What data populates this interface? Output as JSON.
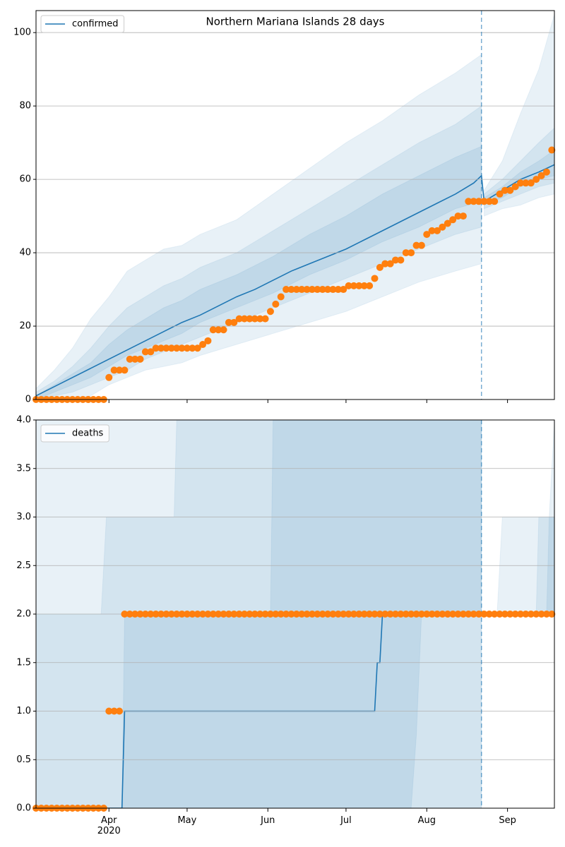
{
  "chart_data": [
    {
      "type": "line",
      "title": "Northern Mariana Islands 28 days",
      "xlim": [
        64,
        263
      ],
      "ylim": [
        0,
        106
      ],
      "yticks": [
        0,
        20,
        40,
        60,
        80,
        100
      ],
      "grid": true,
      "legend": "upper left",
      "series": [
        {
          "name": "confirmed",
          "color": "#1f77b4",
          "x": [
            64,
            71,
            78,
            85,
            92,
            99,
            106,
            113,
            120,
            127,
            134,
            141,
            148,
            155,
            162,
            169,
            176,
            183,
            190,
            197,
            204,
            211,
            218,
            225,
            232,
            235,
            236,
            243,
            250,
            257,
            263
          ],
          "values": [
            1,
            3.5,
            6,
            8.5,
            11,
            13.5,
            16,
            18.5,
            21,
            23,
            25.5,
            28,
            30,
            32.5,
            35,
            37,
            39,
            41,
            43.5,
            46,
            48.5,
            51,
            53.5,
            56,
            59,
            61,
            54,
            57,
            60,
            62,
            64
          ]
        }
      ],
      "observed": {
        "color": "#ff7f0e",
        "x": [
          64,
          66,
          68,
          70,
          72,
          74,
          76,
          78,
          80,
          82,
          84,
          86,
          88,
          90,
          92,
          94,
          96,
          98,
          100,
          102,
          104,
          106,
          108,
          110,
          112,
          114,
          116,
          118,
          120,
          122,
          124,
          126,
          128,
          130,
          132,
          134,
          136,
          138,
          140,
          142,
          144,
          146,
          148,
          150,
          152,
          154,
          156,
          158,
          160,
          162,
          164,
          166,
          168,
          170,
          172,
          174,
          176,
          178,
          180,
          182,
          184,
          186,
          188,
          190,
          192,
          194,
          196,
          198,
          200,
          202,
          204,
          206,
          208,
          210,
          212,
          214,
          216,
          218,
          220,
          222,
          224,
          226,
          228,
          230,
          232,
          234,
          236,
          238,
          240,
          242,
          244,
          246,
          248,
          250,
          252,
          254,
          256,
          258,
          260,
          262
        ],
        "values": [
          0,
          0,
          0,
          0,
          0,
          0,
          0,
          0,
          0,
          0,
          0,
          0,
          0,
          0,
          6,
          8,
          8,
          8,
          11,
          11,
          11,
          13,
          13,
          14,
          14,
          14,
          14,
          14,
          14,
          14,
          14,
          14,
          15,
          16,
          19,
          19,
          19,
          21,
          21,
          22,
          22,
          22,
          22,
          22,
          22,
          24,
          26,
          28,
          30,
          30,
          30,
          30,
          30,
          30,
          30,
          30,
          30,
          30,
          30,
          30,
          31,
          31,
          31,
          31,
          31,
          33,
          36,
          37,
          37,
          38,
          38,
          40,
          40,
          42,
          42,
          45,
          46,
          46,
          47,
          48,
          49,
          50,
          50,
          54,
          54,
          54,
          54,
          54,
          54,
          56,
          57,
          57,
          58,
          59,
          59,
          59,
          60,
          61,
          62,
          68
        ]
      },
      "band_color": "#1f77b4",
      "bands": [
        {
          "x": [
            64,
            71,
            78,
            85,
            92,
            99,
            106,
            113,
            120,
            127,
            141,
            155,
            169,
            183,
            197,
            211,
            225,
            235
          ],
          "lower": [
            0,
            0,
            0,
            1,
            4,
            6,
            8,
            9,
            10,
            12,
            15,
            18,
            21,
            24,
            28,
            32,
            35,
            37
          ],
          "upper": [
            3,
            8,
            14,
            22,
            28,
            35,
            38,
            41,
            42,
            45,
            49,
            56,
            63,
            70,
            76,
            83,
            89,
            94
          ]
        },
        {
          "x": [
            64,
            71,
            78,
            85,
            92,
            99,
            106,
            113,
            120,
            127,
            141,
            155,
            169,
            183,
            197,
            211,
            225,
            235
          ],
          "lower": [
            0,
            1,
            2,
            4,
            6,
            8,
            11,
            13,
            15,
            17,
            21,
            25,
            29,
            33,
            37,
            41,
            45,
            47
          ],
          "upper": [
            2,
            5,
            9,
            14,
            20,
            25,
            28,
            31,
            33,
            36,
            40,
            46,
            52,
            58,
            64,
            70,
            75,
            80
          ]
        },
        {
          "x": [
            64,
            71,
            78,
            85,
            92,
            99,
            106,
            113,
            120,
            127,
            141,
            155,
            169,
            183,
            197,
            211,
            225,
            235
          ],
          "lower": [
            0,
            2,
            4,
            6,
            9,
            12,
            14,
            16,
            18,
            21,
            25,
            29,
            34,
            38,
            43,
            47,
            52,
            54
          ],
          "upper": [
            1,
            4,
            7,
            10,
            15,
            19,
            22,
            25,
            27,
            30,
            34,
            39,
            45,
            50,
            56,
            61,
            66,
            69
          ]
        },
        {
          "x": [
            236,
            243,
            250,
            257,
            263
          ],
          "lower": [
            50,
            52,
            53,
            55,
            56
          ],
          "upper": [
            57,
            65,
            78,
            90,
            105
          ]
        },
        {
          "x": [
            236,
            243,
            250,
            257,
            263
          ],
          "lower": [
            52,
            54,
            56,
            58,
            59
          ],
          "upper": [
            56,
            60,
            65,
            70,
            74
          ]
        },
        {
          "x": [
            236,
            243,
            250,
            257,
            263
          ],
          "lower": [
            53,
            55,
            58,
            60,
            61
          ],
          "upper": [
            55,
            58,
            62,
            65,
            68
          ]
        }
      ],
      "vline": 235
    },
    {
      "type": "line",
      "xlim": [
        64,
        263
      ],
      "ylim": [
        0,
        4
      ],
      "yticks": [
        {
          "value": 0,
          "label": "0.0"
        },
        0.5,
        {
          "value": 1,
          "label": "1.0"
        },
        1.5,
        {
          "value": 2,
          "label": "2.0"
        },
        2.5,
        {
          "value": 3,
          "label": "3.0"
        },
        3.5,
        {
          "value": 4,
          "label": "4.0"
        }
      ],
      "xticks": [
        {
          "value": 92,
          "label": "Apr\n2020"
        },
        {
          "value": 122,
          "label": "May"
        },
        {
          "value": 153,
          "label": "Jun"
        },
        {
          "value": 183,
          "label": "Jul"
        },
        {
          "value": 214,
          "label": "Aug"
        },
        {
          "value": 245,
          "label": "Sep"
        }
      ],
      "grid": true,
      "legend": "upper left",
      "series": [
        {
          "name": "deaths",
          "color": "#1f77b4",
          "x": [
            64,
            97,
            98,
            194,
            195,
            196,
            197,
            263
          ],
          "values": [
            0,
            0,
            1,
            1,
            1.5,
            1.5,
            2,
            2
          ]
        }
      ],
      "observed": {
        "color": "#ff7f0e",
        "x": [
          64,
          66,
          68,
          70,
          72,
          74,
          76,
          78,
          80,
          82,
          84,
          86,
          88,
          90,
          92,
          94,
          96,
          98,
          100,
          102,
          104,
          106,
          108,
          110,
          112,
          114,
          116,
          118,
          120,
          122,
          124,
          126,
          128,
          130,
          132,
          134,
          136,
          138,
          140,
          142,
          144,
          146,
          148,
          150,
          152,
          154,
          156,
          158,
          160,
          162,
          164,
          166,
          168,
          170,
          172,
          174,
          176,
          178,
          180,
          182,
          184,
          186,
          188,
          190,
          192,
          194,
          196,
          198,
          200,
          202,
          204,
          206,
          208,
          210,
          212,
          214,
          216,
          218,
          220,
          222,
          224,
          226,
          228,
          230,
          232,
          234,
          236,
          238,
          240,
          242,
          244,
          246,
          248,
          250,
          252,
          254,
          256,
          258,
          260,
          262
        ],
        "values": [
          0,
          0,
          0,
          0,
          0,
          0,
          0,
          0,
          0,
          0,
          0,
          0,
          0,
          0,
          1,
          1,
          1,
          2,
          2,
          2,
          2,
          2,
          2,
          2,
          2,
          2,
          2,
          2,
          2,
          2,
          2,
          2,
          2,
          2,
          2,
          2,
          2,
          2,
          2,
          2,
          2,
          2,
          2,
          2,
          2,
          2,
          2,
          2,
          2,
          2,
          2,
          2,
          2,
          2,
          2,
          2,
          2,
          2,
          2,
          2,
          2,
          2,
          2,
          2,
          2,
          2,
          2,
          2,
          2,
          2,
          2,
          2,
          2,
          2,
          2,
          2,
          2,
          2,
          2,
          2,
          2,
          2,
          2,
          2,
          2,
          2,
          2,
          2,
          2,
          2,
          2,
          2,
          2,
          2,
          2,
          2,
          2,
          2,
          2,
          2
        ]
      },
      "band_color": "#1f77b4",
      "bands": [
        {
          "x": [
            64,
            235
          ],
          "lower": [
            0,
            0
          ],
          "upper": [
            4,
            4
          ]
        },
        {
          "x": [
            64,
            89,
            91,
            117,
            118,
            235
          ],
          "lower": [
            0,
            0,
            0,
            0,
            0,
            0
          ],
          "upper": [
            2,
            2,
            3,
            3,
            4,
            4
          ]
        },
        {
          "x": [
            64,
            97,
            98,
            154,
            155,
            208,
            210,
            212,
            235
          ],
          "lower": [
            0,
            0,
            0,
            0,
            0,
            0,
            0.75,
            2,
            2
          ],
          "upper": [
            0,
            0,
            2,
            2,
            4,
            4,
            4,
            4,
            4
          ]
        },
        {
          "x": [
            236,
            241,
            243,
            263
          ],
          "lower": [
            2,
            2,
            2,
            2
          ],
          "upper": [
            2,
            2,
            3,
            3
          ]
        },
        {
          "x": [
            236,
            256,
            257,
            263
          ],
          "lower": [
            2,
            2,
            2,
            2
          ],
          "upper": [
            2,
            2,
            3,
            3
          ]
        },
        {
          "x": [
            236,
            260,
            261,
            263
          ],
          "lower": [
            2,
            2,
            2,
            2
          ],
          "upper": [
            2,
            2,
            3,
            4
          ]
        }
      ],
      "vline": 235
    }
  ]
}
